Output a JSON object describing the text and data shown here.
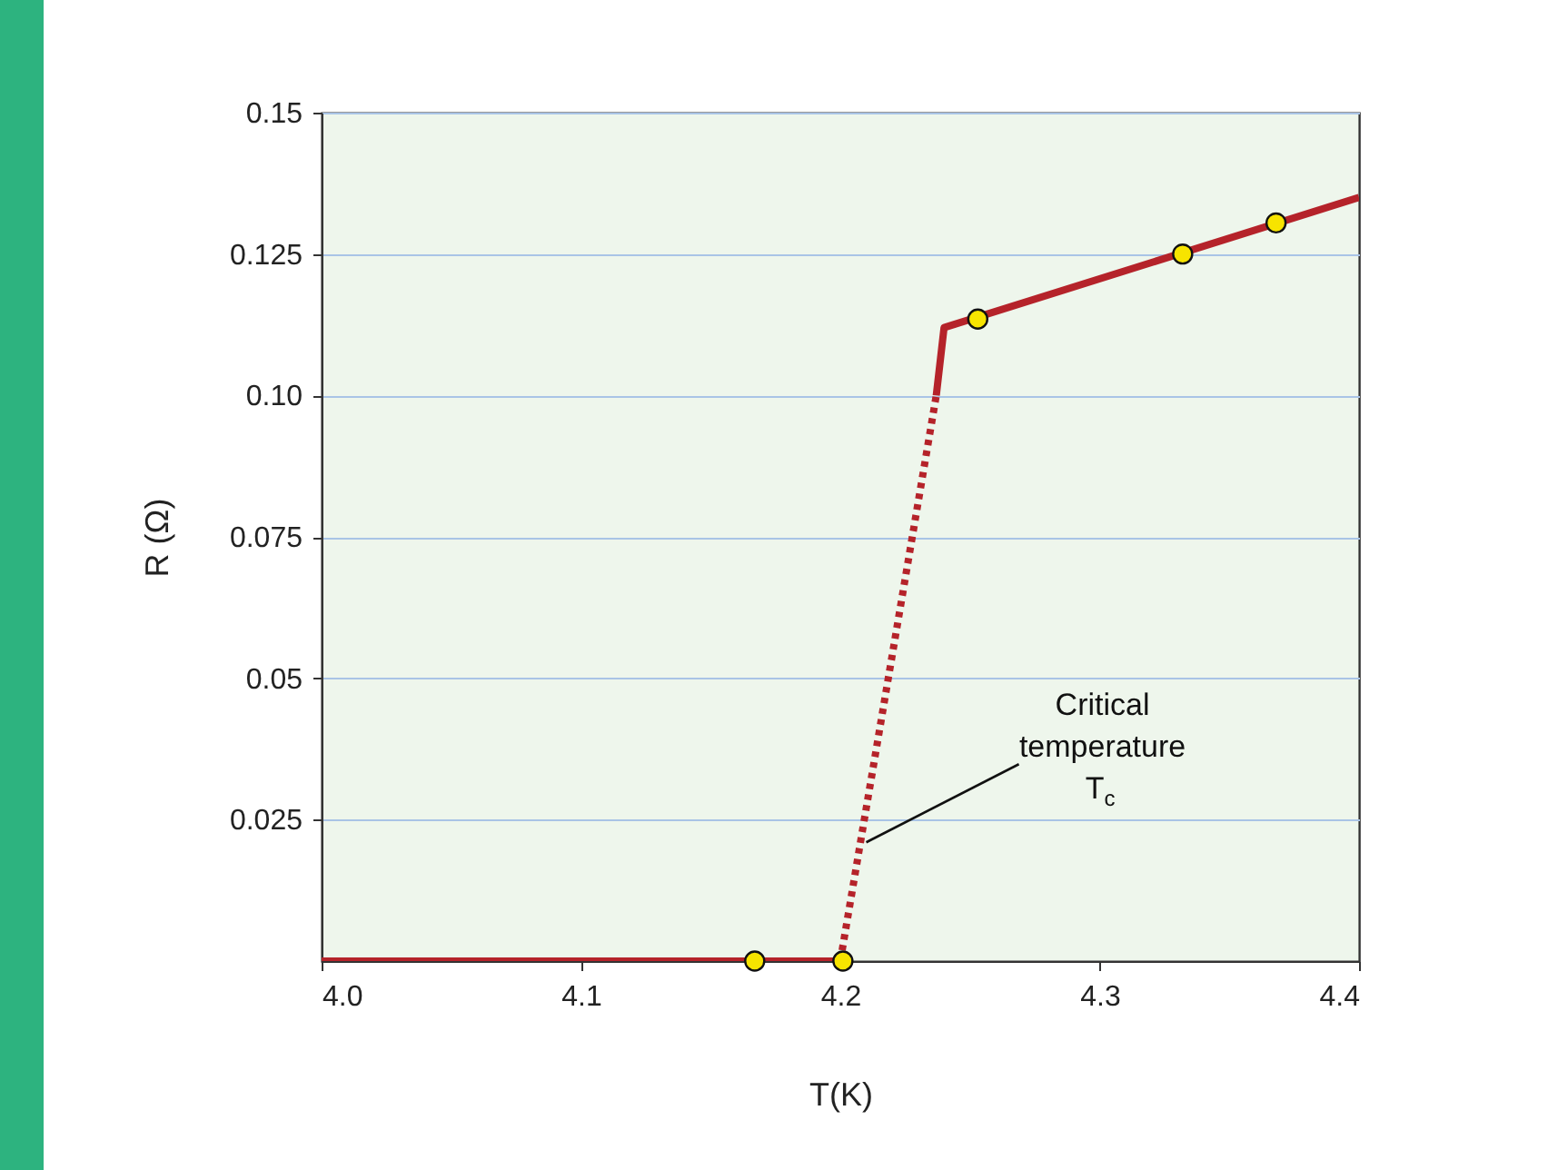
{
  "chart_data": {
    "type": "line",
    "xlabel": "T(K)",
    "ylabel": "R (Ω)",
    "xlim": [
      4.0,
      4.4
    ],
    "ylim": [
      0,
      0.15
    ],
    "xticks": [
      {
        "value": 4,
        "label": "4.0"
      },
      4.1,
      4.2,
      4.3,
      4.4
    ],
    "yticks": [
      0.025,
      0.05,
      0.075,
      {
        "value": 0.1,
        "label": "0.10"
      },
      0.125,
      0.15
    ],
    "grid": "y",
    "series": [
      {
        "color": "#b5232a",
        "line_style": "solid",
        "x": [
          4.0,
          4.2
        ],
        "values": [
          0,
          0
        ]
      },
      {
        "color": "#b5232a",
        "line_style": "dotted",
        "x": [
          4.2,
          4.237
        ],
        "values": [
          0,
          0.1
        ]
      },
      {
        "color": "#b5232a",
        "line_style": "solid",
        "x": [
          4.237,
          4.24,
          4.4
        ],
        "values": [
          0.1,
          0.112,
          0.135
        ]
      },
      {
        "type": "scatter",
        "marker": "circle",
        "color": "#f7e400",
        "x": [
          4.167,
          4.201,
          4.253,
          4.332,
          4.368
        ],
        "values": [
          0,
          0,
          0.1135,
          0.125,
          0.1305
        ]
      }
    ],
    "annotations": [
      {
        "text": "Critical\ntemperature\nT$_{c}$",
        "x": 4.21,
        "y": 0.021
      }
    ]
  }
}
